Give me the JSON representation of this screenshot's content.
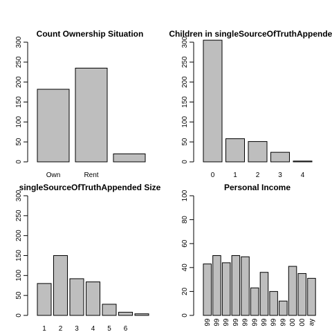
{
  "chart_data": [
    {
      "type": "bar",
      "title": "Count Ownership Situation",
      "categories": [
        "Own",
        "Rent",
        ""
      ],
      "values": [
        182,
        235,
        20
      ],
      "ylim": [
        0,
        300
      ],
      "yticks": [
        "0",
        "50",
        "100",
        "150",
        "200",
        "250",
        "300"
      ]
    },
    {
      "type": "bar",
      "title": "Children in singleSourceOfTruthAppended",
      "categories": [
        "0",
        "1",
        "2",
        "3",
        "4"
      ],
      "values": [
        305,
        58,
        51,
        24,
        2
      ],
      "ylim": [
        0,
        300
      ],
      "yticks": [
        "0",
        "50",
        "100",
        "150",
        "200",
        "250",
        "300"
      ]
    },
    {
      "type": "bar",
      "title": "singleSourceOfTruthAppended Size",
      "categories": [
        "1",
        "2",
        "3",
        "4",
        "5",
        "6",
        ""
      ],
      "values": [
        80,
        150,
        92,
        84,
        28,
        8,
        4
      ],
      "ylim": [
        0,
        300
      ],
      "yticks": [
        "0",
        "50",
        "100",
        "150",
        "200",
        "250",
        "300"
      ]
    },
    {
      "type": "bar",
      "title": "Personal Income",
      "categories": [
        "99",
        "99",
        "99",
        "99",
        "99",
        "99",
        "99",
        "99",
        "99",
        "00",
        "00",
        "ay"
      ],
      "values": [
        43,
        50,
        44,
        50,
        49,
        23,
        36,
        20,
        12,
        41,
        35,
        31
      ],
      "ylim": [
        0,
        100
      ],
      "yticks": [
        "0",
        "20",
        "40",
        "60",
        "80",
        "100"
      ]
    }
  ]
}
